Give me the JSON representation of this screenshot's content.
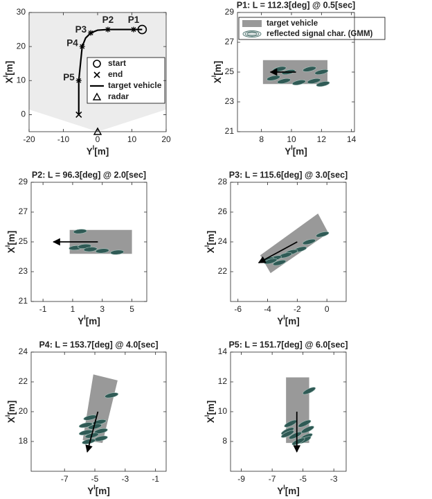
{
  "chart_data": [
    {
      "type": "trajectory",
      "xlabel": {
        "base": "Y",
        "sup": "I",
        "unit": "[m]"
      },
      "ylabel": {
        "base": "X",
        "sup": "I",
        "unit": "[m]"
      },
      "xlim": [
        -20,
        20
      ],
      "ylim": [
        -5,
        30
      ],
      "xticks": [
        -20,
        -10,
        0,
        10,
        20
      ],
      "yticks": [
        0,
        10,
        20,
        30
      ],
      "fov": {
        "color": "#ececec",
        "x": [
          -20,
          0,
          20,
          20,
          -20
        ],
        "y": [
          1.5,
          -5,
          1.5,
          30,
          30
        ]
      },
      "trajectory": {
        "name": "target vehicle",
        "color": "#000000",
        "x": [
          13,
          10.5,
          6,
          3,
          0,
          -2,
          -3.5,
          -4.5,
          -5,
          -5.5,
          -5.5,
          -5.5
        ],
        "y": [
          25,
          25,
          25,
          25,
          24.8,
          24,
          22.5,
          20,
          15,
          10,
          5,
          0
        ]
      },
      "points": {
        "labels": [
          "P1",
          "P2",
          "P3",
          "P4",
          "P5"
        ],
        "x": [
          10.5,
          3,
          -2,
          -4.5,
          -5.5
        ],
        "y": [
          25,
          25,
          24,
          20,
          10
        ]
      },
      "start": {
        "name": "start",
        "x": 13,
        "y": 25
      },
      "end": {
        "name": "end",
        "x": -5.5,
        "y": 0
      },
      "radar": {
        "name": "radar",
        "x": 0,
        "y": -5
      }
    },
    {
      "type": "vehicle",
      "title": "P1: L = 112.3[deg] @ 0.5[sec]",
      "xlabel": {
        "base": "Y",
        "sup": "I",
        "unit": "[m]"
      },
      "ylabel": {
        "base": "X",
        "sup": "I",
        "unit": "[m]"
      },
      "xlim": [
        6.4,
        14.2
      ],
      "ylim": [
        21,
        29
      ],
      "xticks": [
        8,
        10,
        12,
        14
      ],
      "yticks": [
        21,
        23,
        25,
        27,
        29
      ],
      "vehicle": {
        "name": "target vehicle",
        "color": "#999999",
        "x": [
          8.1,
          12.4,
          12.4,
          8.1
        ],
        "y": [
          25.8,
          25.8,
          24.2,
          24.2
        ]
      },
      "gmm": {
        "name": "reflected signal char. (GMM)",
        "color": "#2f5a55",
        "rx": 0.45,
        "ry": 0.1,
        "angle": -12,
        "x": [
          9.2,
          9.8,
          11.2,
          12.0,
          8.8,
          9.5,
          10.5,
          11.5,
          12.1
        ],
        "y": [
          25.2,
          25.0,
          25.2,
          25.0,
          24.6,
          24.4,
          24.3,
          24.4,
          24.2
        ]
      },
      "heading": {
        "color": "#000000",
        "x": [
          10.3,
          8.6
        ],
        "y": [
          25,
          25
        ]
      }
    },
    {
      "type": "vehicle",
      "title": "P2: L = 96.3[deg] @ 2.0[sec]",
      "xlabel": {
        "base": "Y",
        "sup": "I",
        "unit": "[m]"
      },
      "ylabel": {
        "base": "X",
        "sup": "I",
        "unit": "[m]"
      },
      "xlim": [
        -1.8,
        6
      ],
      "ylim": [
        21,
        29
      ],
      "xticks": [
        -1,
        1,
        3,
        5
      ],
      "yticks": [
        21,
        23,
        25,
        27,
        29
      ],
      "vehicle": {
        "color": "#999999",
        "x": [
          0.8,
          5,
          5,
          0.8
        ],
        "y": [
          25.8,
          25.8,
          24.2,
          24.2
        ]
      },
      "gmm": {
        "color": "#2f5a55",
        "rx": 0.45,
        "ry": 0.1,
        "angle": -5,
        "x": [
          1.5,
          1.2,
          1.8,
          2.2,
          3.0,
          4.0
        ],
        "y": [
          25.7,
          24.6,
          24.7,
          24.5,
          24.4,
          24.3
        ]
      },
      "heading": {
        "color": "#000000",
        "x": [
          2.7,
          -0.3
        ],
        "y": [
          25,
          25
        ]
      }
    },
    {
      "type": "vehicle",
      "title": "P3: L = 115.6[deg] @ 3.0[sec]",
      "xlabel": {
        "base": "Y",
        "sup": "I",
        "unit": "[m]"
      },
      "ylabel": {
        "base": "X",
        "sup": "I",
        "unit": "[m]"
      },
      "xlim": [
        -6.5,
        1.3
      ],
      "ylim": [
        20,
        28
      ],
      "xticks": [
        -6,
        -4,
        -2,
        0
      ],
      "yticks": [
        22,
        24,
        26,
        28
      ],
      "vehicle": {
        "color": "#999999",
        "x": [
          -4.5,
          -0.6,
          0.1,
          -3.8
        ],
        "y": [
          23.1,
          25.9,
          24.6,
          21.9
        ]
      },
      "gmm": {
        "color": "#2f5a55",
        "rx": 0.45,
        "ry": 0.1,
        "angle": -15,
        "x": [
          -0.3,
          -1.2,
          -1.8,
          -2.4,
          -2.8,
          -3.5,
          -4.0,
          -3.2,
          -3.8
        ],
        "y": [
          24.5,
          24.0,
          23.5,
          23.3,
          23.1,
          22.9,
          22.8,
          22.6,
          22.7
        ]
      },
      "heading": {
        "color": "#000000",
        "x": [
          -2,
          -4.6
        ],
        "y": [
          24,
          22.6
        ]
      }
    },
    {
      "type": "vehicle",
      "title": "P4: L = 153.7[deg] @ 4.0[sec]",
      "xlabel": {
        "base": "Y",
        "sup": "I",
        "unit": "[m]"
      },
      "ylabel": {
        "base": "X",
        "sup": "I",
        "unit": "[m]"
      },
      "xlim": [
        -9.2,
        -0.3
      ],
      "ylim": [
        16,
        24
      ],
      "xticks": [
        -7,
        -5,
        -3,
        -1
      ],
      "yticks": [
        18,
        20,
        22,
        24
      ],
      "vehicle": {
        "color": "#999999",
        "x": [
          -5.1,
          -3.5,
          -4.5,
          -5.8
        ],
        "y": [
          22.5,
          22.1,
          17.9,
          18.1
        ]
      },
      "gmm": {
        "color": "#2f5a55",
        "rx": 0.45,
        "ry": 0.1,
        "angle": -12,
        "x": [
          -3.9,
          -5.3,
          -4.7,
          -5.6,
          -5.0,
          -4.6,
          -5.6,
          -5.2,
          -4.6,
          -5.4
        ],
        "y": [
          21.1,
          19.6,
          19.3,
          19.1,
          19.0,
          18.7,
          18.6,
          18.4,
          18.2,
          18.0
        ]
      },
      "heading": {
        "color": "#000000",
        "x": [
          -4.8,
          -5.5
        ],
        "y": [
          20,
          17.3
        ]
      }
    },
    {
      "type": "vehicle",
      "title": "P5: L = 151.7[deg] @ 6.0[sec]",
      "xlabel": {
        "base": "Y",
        "sup": "I",
        "unit": "[m]"
      },
      "ylabel": {
        "base": "X",
        "sup": "I",
        "unit": "[m]"
      },
      "xlim": [
        -9.7,
        -2.2
      ],
      "ylim": [
        6,
        14
      ],
      "xticks": [
        -9,
        -7,
        -5,
        -3
      ],
      "yticks": [
        8,
        10,
        12,
        14
      ],
      "vehicle": {
        "color": "#999999",
        "x": [
          -6.1,
          -4.6,
          -4.6,
          -6.1
        ],
        "y": [
          12.3,
          12.3,
          7.9,
          7.9
        ]
      },
      "gmm": {
        "color": "#2f5a55",
        "rx": 0.45,
        "ry": 0.1,
        "angle": -25,
        "x": [
          -4.6,
          -5.8,
          -6.0,
          -4.9,
          -4.7,
          -5.5,
          -4.8,
          -4.9,
          -5.3,
          -6.0
        ],
        "y": [
          11.4,
          9.2,
          8.7,
          9.2,
          8.8,
          8.4,
          8.3,
          8.1,
          8.0,
          8.5
        ]
      },
      "heading": {
        "color": "#000000",
        "x": [
          -5.4,
          -5.4
        ],
        "y": [
          10,
          7.3
        ]
      }
    }
  ]
}
